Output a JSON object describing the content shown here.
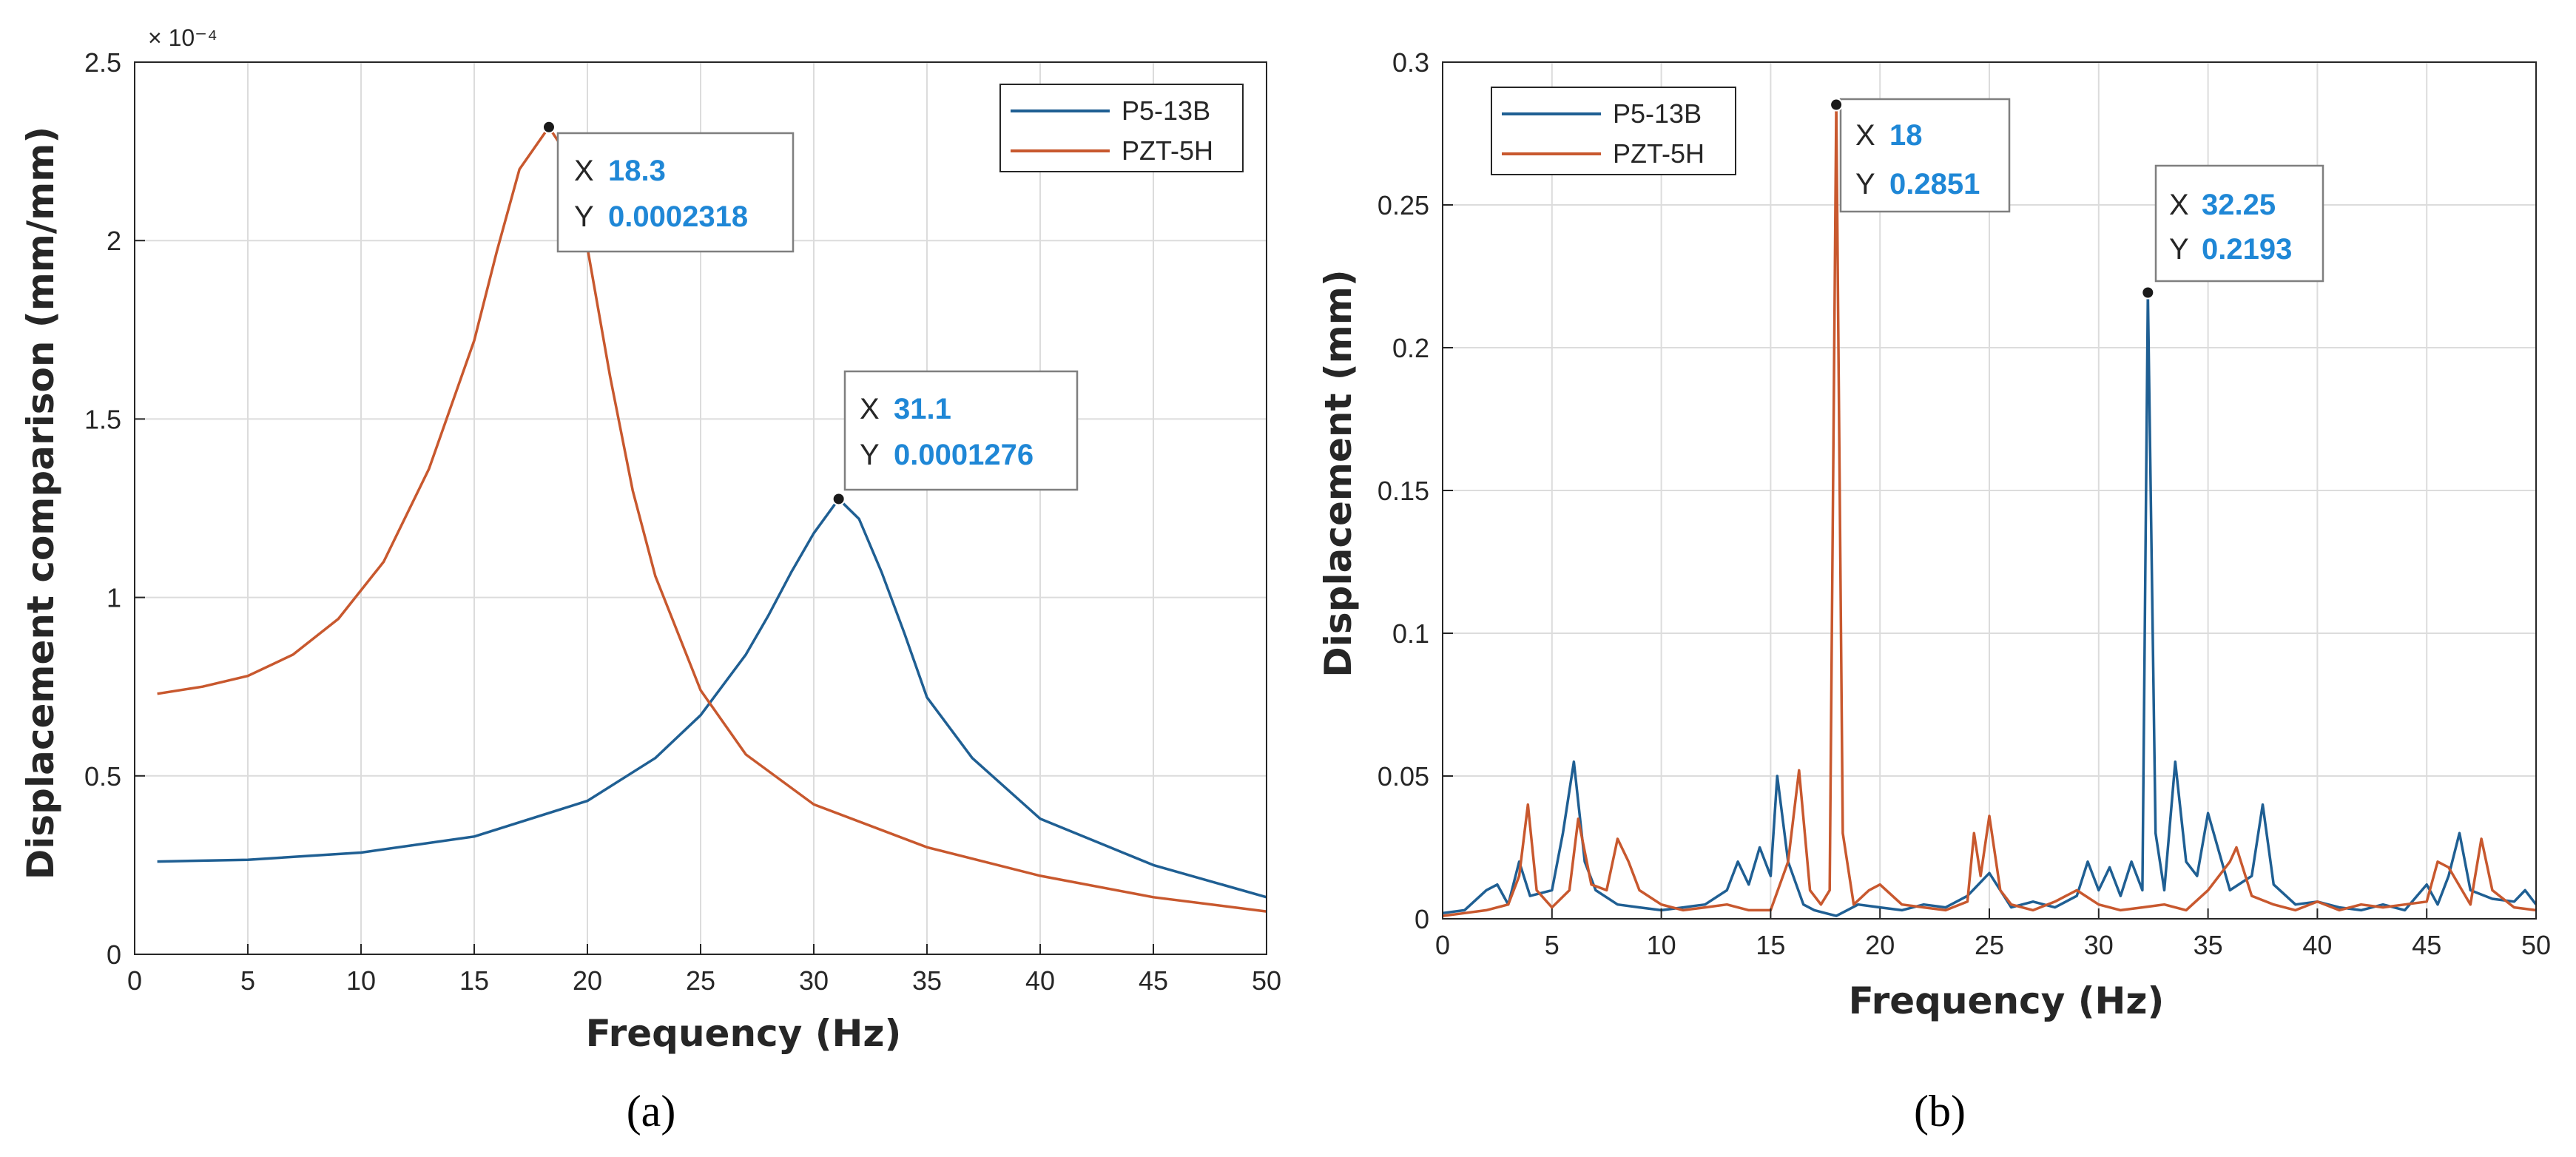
{
  "chart_data": [
    {
      "panel": "(a)",
      "type": "line",
      "xlabel": "Frequency (Hz)",
      "ylabel": "Displacement comparison (mm/mm)",
      "xlim": [
        0,
        50
      ],
      "ylim": [
        0,
        2.5
      ],
      "y_multiplier": "× 10⁻⁴",
      "x_ticks": [
        0,
        5,
        10,
        15,
        20,
        25,
        30,
        35,
        40,
        45,
        50
      ],
      "x_tick_labels": [
        "0",
        "5",
        "10",
        "15",
        "20",
        "25",
        "30",
        "35",
        "40",
        "45",
        "50"
      ],
      "y_ticks": [
        0,
        0.5,
        1,
        1.5,
        2,
        2.5
      ],
      "y_tick_labels": [
        "0",
        "0.5",
        "1",
        "1.5",
        "2",
        "2.5"
      ],
      "grid": true,
      "legend_position": "top-right",
      "series": [
        {
          "name": "P5-13B",
          "color": "#1f5f93",
          "x": [
            1,
            5,
            10,
            15,
            20,
            23,
            25,
            27,
            28,
            29,
            30,
            31.1,
            32,
            33,
            34,
            35,
            37,
            40,
            45,
            50
          ],
          "y": [
            0.26,
            0.265,
            0.285,
            0.33,
            0.43,
            0.55,
            0.67,
            0.84,
            0.95,
            1.07,
            1.18,
            1.276,
            1.22,
            1.07,
            0.9,
            0.72,
            0.55,
            0.38,
            0.25,
            0.16
          ]
        },
        {
          "name": "PZT-5H",
          "color": "#c8582e",
          "x": [
            1,
            3,
            5,
            7,
            9,
            11,
            13,
            15,
            16,
            17,
            18.3,
            19,
            20,
            21,
            22,
            23,
            25,
            27,
            30,
            35,
            40,
            45,
            50
          ],
          "y": [
            0.73,
            0.75,
            0.78,
            0.84,
            0.94,
            1.1,
            1.36,
            1.72,
            1.97,
            2.2,
            2.318,
            2.25,
            1.98,
            1.62,
            1.3,
            1.06,
            0.74,
            0.56,
            0.42,
            0.3,
            0.22,
            0.16,
            0.12
          ]
        }
      ],
      "datatips": [
        {
          "x_label": "X",
          "x_value": "18.3",
          "y_label": "Y",
          "y_value": "0.0002318",
          "x": 18.3,
          "y": 2.318
        },
        {
          "x_label": "X",
          "x_value": "31.1",
          "y_label": "Y",
          "y_value": "0.0001276",
          "x": 31.1,
          "y": 1.276
        }
      ]
    },
    {
      "panel": "(b)",
      "type": "line",
      "xlabel": "Frequency (Hz)",
      "ylabel": "Displacement (mm)",
      "xlim": [
        0,
        50
      ],
      "ylim": [
        0,
        0.3
      ],
      "x_ticks": [
        0,
        5,
        10,
        15,
        20,
        25,
        30,
        35,
        40,
        45,
        50
      ],
      "x_tick_labels": [
        "0",
        "5",
        "10",
        "15",
        "20",
        "25",
        "30",
        "35",
        "40",
        "45",
        "50"
      ],
      "y_ticks": [
        0,
        0.05,
        0.1,
        0.15,
        0.2,
        0.25,
        0.3
      ],
      "y_tick_labels": [
        "0",
        "0.05",
        "0.1",
        "0.15",
        "0.2",
        "0.25",
        "0.3"
      ],
      "grid": true,
      "legend_position": "top-left",
      "series": [
        {
          "name": "P5-13B",
          "color": "#1f5f93",
          "x": [
            0,
            1,
            2,
            2.5,
            3,
            3.5,
            4,
            5,
            5.5,
            6,
            6.5,
            7,
            8,
            9,
            10,
            11,
            12,
            13,
            13.5,
            14,
            14.5,
            15,
            15.3,
            15.8,
            16.5,
            17,
            17.5,
            18,
            18.5,
            19,
            20,
            21,
            22,
            23,
            24,
            25,
            26,
            27,
            28,
            29,
            29.5,
            30,
            30.5,
            31,
            31.5,
            32,
            32.25,
            32.6,
            33,
            33.5,
            34,
            34.5,
            35,
            36,
            37,
            37.5,
            38,
            39,
            40,
            41,
            42,
            43,
            44,
            45,
            45.5,
            46,
            46.5,
            47,
            48,
            49,
            49.5,
            50
          ],
          "y": [
            0.002,
            0.003,
            0.01,
            0.012,
            0.005,
            0.02,
            0.008,
            0.01,
            0.03,
            0.055,
            0.02,
            0.01,
            0.005,
            0.004,
            0.003,
            0.004,
            0.005,
            0.01,
            0.02,
            0.012,
            0.025,
            0.015,
            0.05,
            0.02,
            0.005,
            0.003,
            0.002,
            0.001,
            0.003,
            0.005,
            0.004,
            0.003,
            0.005,
            0.004,
            0.008,
            0.016,
            0.004,
            0.006,
            0.004,
            0.008,
            0.02,
            0.01,
            0.018,
            0.008,
            0.02,
            0.01,
            0.2193,
            0.03,
            0.01,
            0.055,
            0.02,
            0.015,
            0.037,
            0.01,
            0.015,
            0.04,
            0.012,
            0.005,
            0.006,
            0.004,
            0.003,
            0.005,
            0.003,
            0.012,
            0.005,
            0.015,
            0.03,
            0.01,
            0.007,
            0.006,
            0.01,
            0.005
          ]
        },
        {
          "name": "PZT-5H",
          "color": "#c8582e",
          "x": [
            0,
            1,
            2,
            3,
            3.5,
            3.9,
            4.3,
            5,
            5.8,
            6.2,
            6.8,
            7.5,
            8,
            8.5,
            9,
            10,
            11,
            12,
            13,
            14,
            15,
            15.8,
            16.3,
            16.8,
            17.3,
            17.7,
            18,
            18.3,
            18.8,
            19.5,
            20,
            21,
            22,
            23,
            24,
            24.3,
            24.6,
            25,
            25.5,
            26,
            27,
            28,
            29,
            30,
            31,
            32,
            33,
            34,
            35,
            36,
            36.3,
            37,
            38,
            39,
            40,
            41,
            42,
            43,
            44,
            45,
            45.5,
            46,
            47,
            47.5,
            48,
            49,
            50
          ],
          "y": [
            0.001,
            0.002,
            0.003,
            0.005,
            0.015,
            0.04,
            0.01,
            0.004,
            0.01,
            0.035,
            0.012,
            0.01,
            0.028,
            0.02,
            0.01,
            0.005,
            0.003,
            0.004,
            0.005,
            0.003,
            0.003,
            0.02,
            0.052,
            0.01,
            0.005,
            0.01,
            0.2851,
            0.03,
            0.005,
            0.01,
            0.012,
            0.005,
            0.004,
            0.003,
            0.006,
            0.03,
            0.015,
            0.036,
            0.01,
            0.005,
            0.003,
            0.006,
            0.01,
            0.005,
            0.003,
            0.004,
            0.005,
            0.003,
            0.01,
            0.02,
            0.025,
            0.008,
            0.005,
            0.003,
            0.006,
            0.003,
            0.005,
            0.004,
            0.005,
            0.006,
            0.02,
            0.018,
            0.005,
            0.028,
            0.01,
            0.004,
            0.003
          ]
        }
      ],
      "datatips": [
        {
          "x_label": "X",
          "x_value": "18",
          "y_label": "Y",
          "y_value": "0.2851",
          "x": 18,
          "y": 0.2851
        },
        {
          "x_label": "X",
          "x_value": "32.25",
          "y_label": "Y",
          "y_value": "0.2193",
          "x": 32.25,
          "y": 0.2193
        }
      ]
    }
  ]
}
